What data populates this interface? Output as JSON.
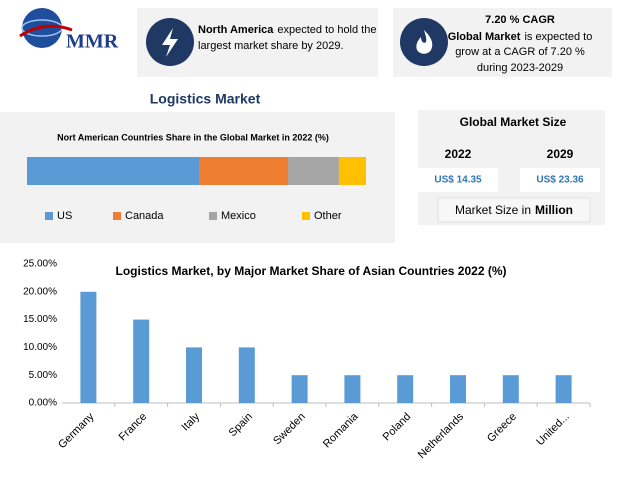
{
  "logo": "MMR",
  "cards": [
    {
      "bold": "North America",
      "lines": [
        "expected to hold the",
        "largest market share by 2029."
      ]
    },
    {
      "title": "7.20 % CAGR",
      "bold": "Global Market",
      "lines": [
        "is expected to",
        "grow at a CAGR of 7.20 %",
        "during 2023-2029"
      ]
    }
  ],
  "title": "Logistics Market",
  "market_size": {
    "title": "Global Market Size",
    "years": [
      "2022",
      "2029"
    ],
    "values": [
      "US$ 14.35",
      "US$ 23.36"
    ],
    "note": "Market Size in",
    "unit": "Million"
  },
  "chart_data": [
    {
      "type": "bar",
      "stacked": true,
      "orientation": "horizontal",
      "title": "Nort American Countries Share in the Global Market in 2022 (%)",
      "xlim": [
        0,
        100
      ],
      "series": [
        {
          "name": "US",
          "color": "#5b9bd5",
          "values": [
            51
          ]
        },
        {
          "name": "Canada",
          "color": "#ed7d31",
          "values": [
            26
          ]
        },
        {
          "name": "Mexico",
          "color": "#a5a5a5",
          "values": [
            15
          ]
        },
        {
          "name": "Other",
          "color": "#ffc000",
          "values": [
            8
          ]
        }
      ],
      "legend": "bottom"
    },
    {
      "type": "bar",
      "title": "Logistics Market, by Major Market Share of Asian Countries 2022 (%)",
      "categories": [
        "Germany",
        "France",
        "Italy",
        "Spain",
        "Sweden",
        "Romania",
        "Poland",
        "Netherlands",
        "Greece",
        "United..."
      ],
      "values": [
        20,
        15,
        10,
        10,
        5,
        5,
        5,
        5,
        5,
        5
      ],
      "color": "#5b9bd5",
      "ylim": [
        0,
        25
      ],
      "yticks": [
        {
          "value": 0,
          "label": "0.00%"
        },
        {
          "value": 5,
          "label": "5.00%"
        },
        {
          "value": 10,
          "label": "10.00%"
        },
        {
          "value": 15,
          "label": "15.00%"
        },
        {
          "value": 20,
          "label": "20.00%"
        },
        {
          "value": 25,
          "label": "25.00%"
        }
      ],
      "grid": false
    }
  ]
}
